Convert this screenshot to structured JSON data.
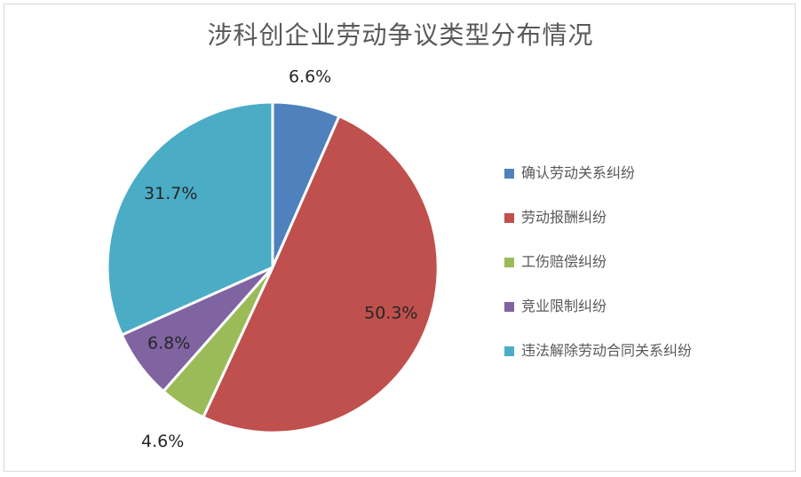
{
  "chart_data": {
    "type": "pie",
    "title": "涉科创企业劳动争议类型分布情况",
    "categories": [
      "确认劳动关系纠纷",
      "劳动报酬纠纷",
      "工伤赔偿纠纷",
      "竞业限制纠纷",
      "违法解除劳动合同关系纠纷"
    ],
    "values": [
      6.6,
      50.3,
      4.6,
      6.8,
      31.7
    ],
    "data_labels": [
      "6.6%",
      "50.3%",
      "4.6%",
      "6.8%",
      "31.7%"
    ],
    "colors": [
      "#4f81bd",
      "#c0504d",
      "#9bbb59",
      "#8064a2",
      "#4bacc6"
    ],
    "legend_position": "right",
    "start_angle": "top",
    "direction": "clockwise"
  }
}
